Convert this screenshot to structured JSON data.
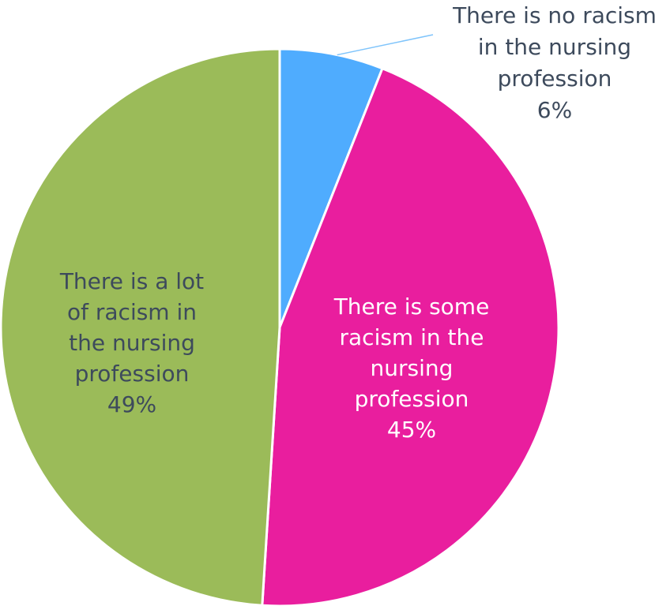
{
  "chart_data": {
    "type": "pie",
    "start_angle_deg": 0,
    "direction": "clockwise",
    "slices": [
      {
        "label_lines": [
          "There is no racism",
          "in the nursing",
          "profession"
        ],
        "value": 6,
        "value_text": "6%",
        "color": "#4facfe",
        "label_color": "#3d4a5c",
        "label_placement": "outside-top-right"
      },
      {
        "label_lines": [
          "There is some",
          "racism in the",
          "nursing",
          "profession"
        ],
        "value": 45,
        "value_text": "45%",
        "color": "#e91e9e",
        "label_color": "#ffffff",
        "label_placement": "inside"
      },
      {
        "label_lines": [
          "There is a lot",
          "of racism in",
          "the nursing",
          "profession"
        ],
        "value": 49,
        "value_text": "49%",
        "color": "#9bbb59",
        "label_color": "#3d4a5c",
        "label_placement": "inside"
      }
    ]
  }
}
